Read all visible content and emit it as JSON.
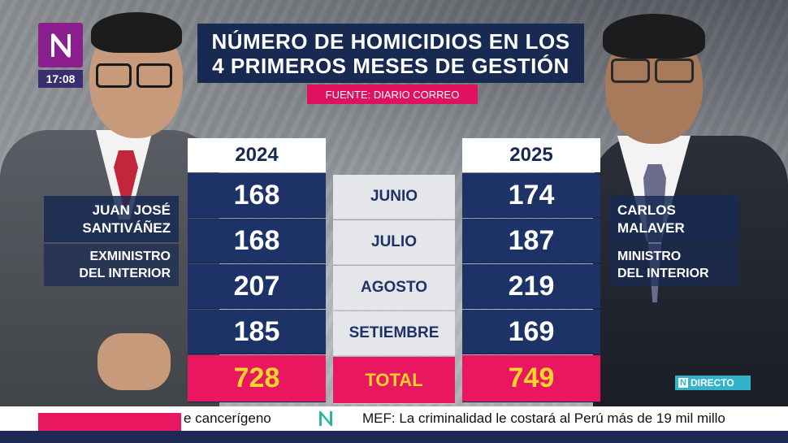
{
  "clock": "17:08",
  "title": {
    "line1": "NÚMERO DE HOMICIDIOS EN LOS",
    "line2": "4 PRIMEROS MESES DE GESTIÓN"
  },
  "source": "FUENTE: DIARIO CORREO",
  "table": {
    "year_left": "2024",
    "year_right": "2025",
    "months": [
      "JUNIO",
      "JULIO",
      "AGOSTO",
      "SETIEMBRE"
    ],
    "values_2024": [
      "168",
      "168",
      "207",
      "185"
    ],
    "values_2025": [
      "174",
      "187",
      "219",
      "169"
    ],
    "total_label": "TOTAL",
    "total_2024": "728",
    "total_2025": "749"
  },
  "left_person": {
    "name": "JUAN JOSÉ\nSANTIVÁÑEZ",
    "role": "EXMINISTRO\nDEL INTERIOR"
  },
  "right_person": {
    "name": "CARLOS\nMALAVER",
    "role": "MINISTRO\nDEL INTERIOR"
  },
  "live_badge": "DIRECTO",
  "ticker": {
    "item1": "e cancerígeno",
    "item2": "MEF: La criminalidad le costará al Perú más de 19 mil millo"
  },
  "colors": {
    "navy": "#1d3267",
    "pink": "#e8175f",
    "yellow": "#f6d52b",
    "brand_purple": "#8b1f8f"
  }
}
